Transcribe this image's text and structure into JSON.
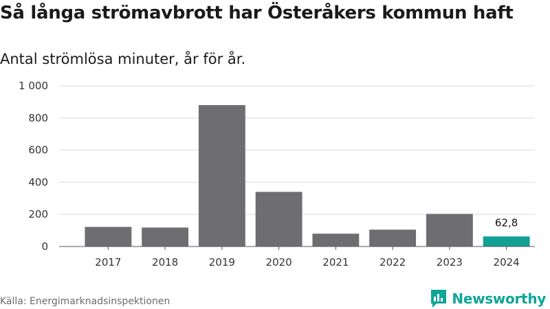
{
  "header": {
    "title": "Så långa strömavbrott har Österåkers kommun haft",
    "subtitle": "Antal strömlösa minuter, år för år."
  },
  "footer": {
    "source": "Källa: Energimarknadsinspektionen",
    "brand": "Newsworthy"
  },
  "colors": {
    "bar": "#6e6d72",
    "highlight": "#12a096",
    "grid": "#d9d9d9",
    "brand": "#0fa598"
  },
  "chart_data": {
    "type": "bar",
    "title": "Så långa strömavbrott har Österåkers kommun haft",
    "subtitle": "Antal strömlösa minuter, år för år.",
    "categories": [
      "2017",
      "2018",
      "2019",
      "2020",
      "2021",
      "2022",
      "2023",
      "2024"
    ],
    "values": [
      122,
      118,
      880,
      340,
      80,
      105,
      203,
      62.8
    ],
    "highlight_index": 7,
    "data_labels": [
      {
        "index": 7,
        "text": "62,8"
      }
    ],
    "ylim": [
      0,
      1000
    ],
    "yticks": [
      0,
      200,
      400,
      600,
      800,
      1000
    ],
    "ytick_labels": [
      "0",
      "200",
      "400",
      "600",
      "800",
      "1 000"
    ],
    "grid": true,
    "xlabel": "",
    "ylabel": ""
  }
}
